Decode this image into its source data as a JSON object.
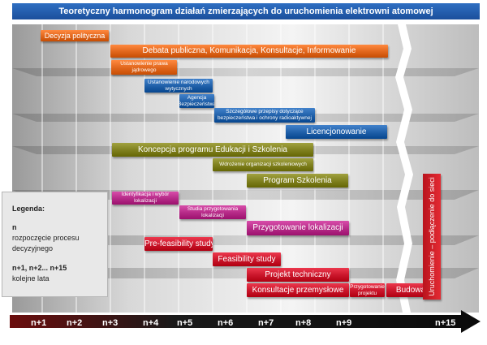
{
  "title": "Teoretyczny harmonogram działań zmierzających do uruchomienia elektrowni atomowej",
  "axis_labels": [
    "n+1",
    "n+2",
    "n+3",
    "n+4",
    "n+5",
    "n+6",
    "n+7",
    "n+8",
    "n+9",
    "n+15"
  ],
  "legend": {
    "heading": "Legenda:",
    "n_symbol": "n",
    "n_desc_1": "rozpoczęcie procesu",
    "n_desc_2": "decyzyjnego",
    "years_symbol": "n+1, n+2... n+15",
    "years_desc": "kolejne lata"
  },
  "tasks": [
    {
      "id": "decyzja",
      "label": "Decyzja polityczna",
      "color": "#e0661c"
    },
    {
      "id": "debata",
      "label": "Debata publiczna, Komunikacja, Konsultacje, Informowanie",
      "color": "#e0661c"
    },
    {
      "id": "prawo",
      "label": "Ustanowienie prawa jądrowego",
      "color": "#e0661c"
    },
    {
      "id": "wytyczne",
      "label": "Ustanowienie narodowych wytycznych",
      "color": "#1f5fa8"
    },
    {
      "id": "agencja",
      "label": "Agencja Bezpieczeństwa",
      "color": "#1f5fa8"
    },
    {
      "id": "przepisy",
      "label": "Szczegółowe przepisy dotyczące bezpieczeństwa i ochrony radioaktywnej",
      "color": "#1f5fa8"
    },
    {
      "id": "licencjonowanie",
      "label": "Licencjonowanie",
      "color": "#1f5fa8"
    },
    {
      "id": "koncepcja",
      "label": "Koncepcja programu Edukacji i Szkolenia",
      "color": "#7e7f1d"
    },
    {
      "id": "wdrozenie",
      "label": "Wdrożenie organizacji szkoleniowych",
      "color": "#7e7f1d"
    },
    {
      "id": "program",
      "label": "Program Szkolenia",
      "color": "#7e7f1d"
    },
    {
      "id": "identyfikacja",
      "label": "Identyfikacja i wybór lokalizacji",
      "color": "#b52a87"
    },
    {
      "id": "studia",
      "label": "Studia przygotowania lokalizacji",
      "color": "#b52a87"
    },
    {
      "id": "przyg_lok",
      "label": "Przygotowanie lokalizacji",
      "color": "#b52a87"
    },
    {
      "id": "prefeas",
      "label": "Pre-feasibility study",
      "color": "#c9152a"
    },
    {
      "id": "feas",
      "label": "Feasibility study",
      "color": "#c9152a"
    },
    {
      "id": "projekt",
      "label": "Projekt techniczny",
      "color": "#c9152a"
    },
    {
      "id": "konsultacje",
      "label": "Konsultacje przemysłowe",
      "color": "#c9152a"
    },
    {
      "id": "przyg_proj",
      "label": "Przygotowanie projektu",
      "color": "#c9152a"
    },
    {
      "id": "budowa",
      "label": "Budowa",
      "color": "#c9152a"
    },
    {
      "id": "uruchomienie",
      "label": "Uruchomienie – podłączenie do sieci",
      "color": "#c9152a"
    }
  ]
}
